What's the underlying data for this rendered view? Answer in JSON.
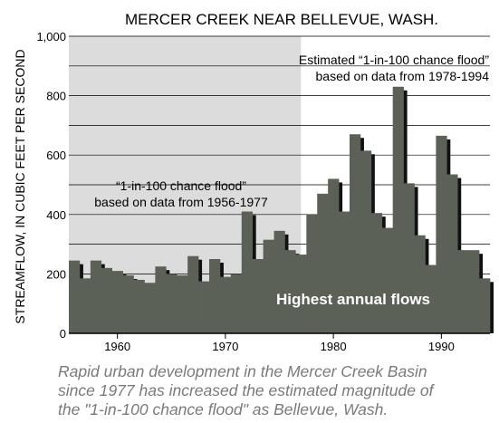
{
  "chart_data": {
    "type": "bar",
    "title": "MERCER CREEK NEAR BELLEVUE, WASH.",
    "ylabel": "STREAMFLOW, IN CUBIC FEET PER SECOND",
    "xlabel": "",
    "ylim": [
      0,
      1000
    ],
    "xlim": [
      1956,
      1995
    ],
    "y_ticks": [
      "0",
      "200",
      "400",
      "600",
      "800",
      "1,000"
    ],
    "x_ticks": [
      "1960",
      "1970",
      "1980",
      "1990"
    ],
    "grid": true,
    "shaded_until_year": 1977.5,
    "series": [
      {
        "name": "Highest annual flows",
        "years": [
          1956,
          1957,
          1958,
          1959,
          1960,
          1961,
          1962,
          1963,
          1964,
          1965,
          1966,
          1967,
          1968,
          1969,
          1970,
          1971,
          1972,
          1973,
          1974,
          1975,
          1976,
          1977,
          1978,
          1979,
          1980,
          1981,
          1982,
          1983,
          1984,
          1985,
          1986,
          1987,
          1988,
          1989,
          1990,
          1991,
          1992,
          1993,
          1994
        ],
        "values": [
          245,
          185,
          245,
          220,
          210,
          195,
          180,
          170,
          225,
          200,
          195,
          260,
          175,
          250,
          190,
          200,
          410,
          250,
          315,
          345,
          280,
          265,
          400,
          470,
          520,
          410,
          670,
          615,
          405,
          355,
          830,
          505,
          330,
          230,
          665,
          535,
          280,
          280,
          185
        ]
      }
    ],
    "annotations": [
      {
        "lines": [
          "Estimated “1-in-100 chance flood”",
          "based on data from 1978-1994"
        ]
      },
      {
        "lines": [
          "“1-in-100 chance flood”",
          "based on data from 1956-1977"
        ]
      },
      {
        "lines": [
          "Highest annual flows"
        ]
      }
    ]
  },
  "caption": {
    "lines": [
      "Rapid urban development in the Mercer Creek Basin",
      "since 1977 has increased the estimated magnitude of",
      "the \"1-in-100 chance flood\" as Bellevue, Wash."
    ]
  },
  "colors": {
    "bar": "#5c6157",
    "shadow": "#111111",
    "shade": "#dcdcdc",
    "grid": "#000000",
    "caption": "#7a7a7a"
  }
}
